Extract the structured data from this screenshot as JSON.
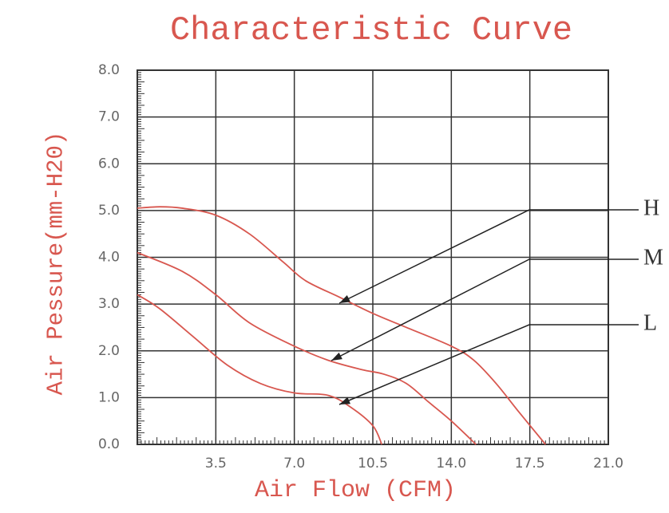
{
  "chart_data": {
    "type": "line",
    "title": "Characteristic Curve",
    "x_label": "Air Flow (CFM)",
    "y_label": "Air Pessure(mm-H20)",
    "xlim": [
      0,
      21
    ],
    "ylim": [
      0,
      8
    ],
    "xticks": [
      3.5,
      {
        "value": 7,
        "label": "7.0"
      },
      10.5,
      {
        "value": 14,
        "label": "14.0"
      },
      17.5,
      {
        "value": 21,
        "label": "21.0"
      }
    ],
    "yticks": [
      {
        "value": 0,
        "label": "0.0"
      },
      {
        "value": 1,
        "label": "1.0"
      },
      {
        "value": 2,
        "label": "2.0"
      },
      {
        "value": 3,
        "label": "3.0"
      },
      {
        "value": 4,
        "label": "4.0"
      },
      {
        "value": 5,
        "label": "5.0"
      },
      {
        "value": 6,
        "label": "6.0"
      },
      {
        "value": 7,
        "label": "7.0"
      },
      {
        "value": 8,
        "label": "8.0"
      }
    ],
    "grid": true,
    "series": [
      {
        "name": "H",
        "color": "#d8574f",
        "x": [
          0,
          1,
          2,
          3.5,
          5,
          6.5,
          7.5,
          9,
          10.5,
          12,
          14,
          15,
          16,
          17,
          18.2
        ],
        "values": [
          5.05,
          5.08,
          5.05,
          4.9,
          4.5,
          3.9,
          3.5,
          3.15,
          2.8,
          2.5,
          2.1,
          1.8,
          1.3,
          0.7,
          0
        ]
      },
      {
        "name": "M",
        "color": "#d8574f",
        "x": [
          0,
          2,
          3.5,
          5,
          7,
          8.5,
          10,
          11,
          12,
          13,
          14,
          15.1
        ],
        "values": [
          4.1,
          3.7,
          3.2,
          2.6,
          2.1,
          1.8,
          1.6,
          1.5,
          1.3,
          0.9,
          0.5,
          0
        ]
      },
      {
        "name": "L",
        "color": "#d8574f",
        "x": [
          0,
          1,
          2.5,
          4,
          5.5,
          7,
          8.5,
          9.5,
          10.5,
          10.9
        ],
        "values": [
          3.2,
          2.9,
          2.3,
          1.7,
          1.3,
          1.1,
          1.05,
          0.8,
          0.4,
          0
        ]
      }
    ]
  }
}
